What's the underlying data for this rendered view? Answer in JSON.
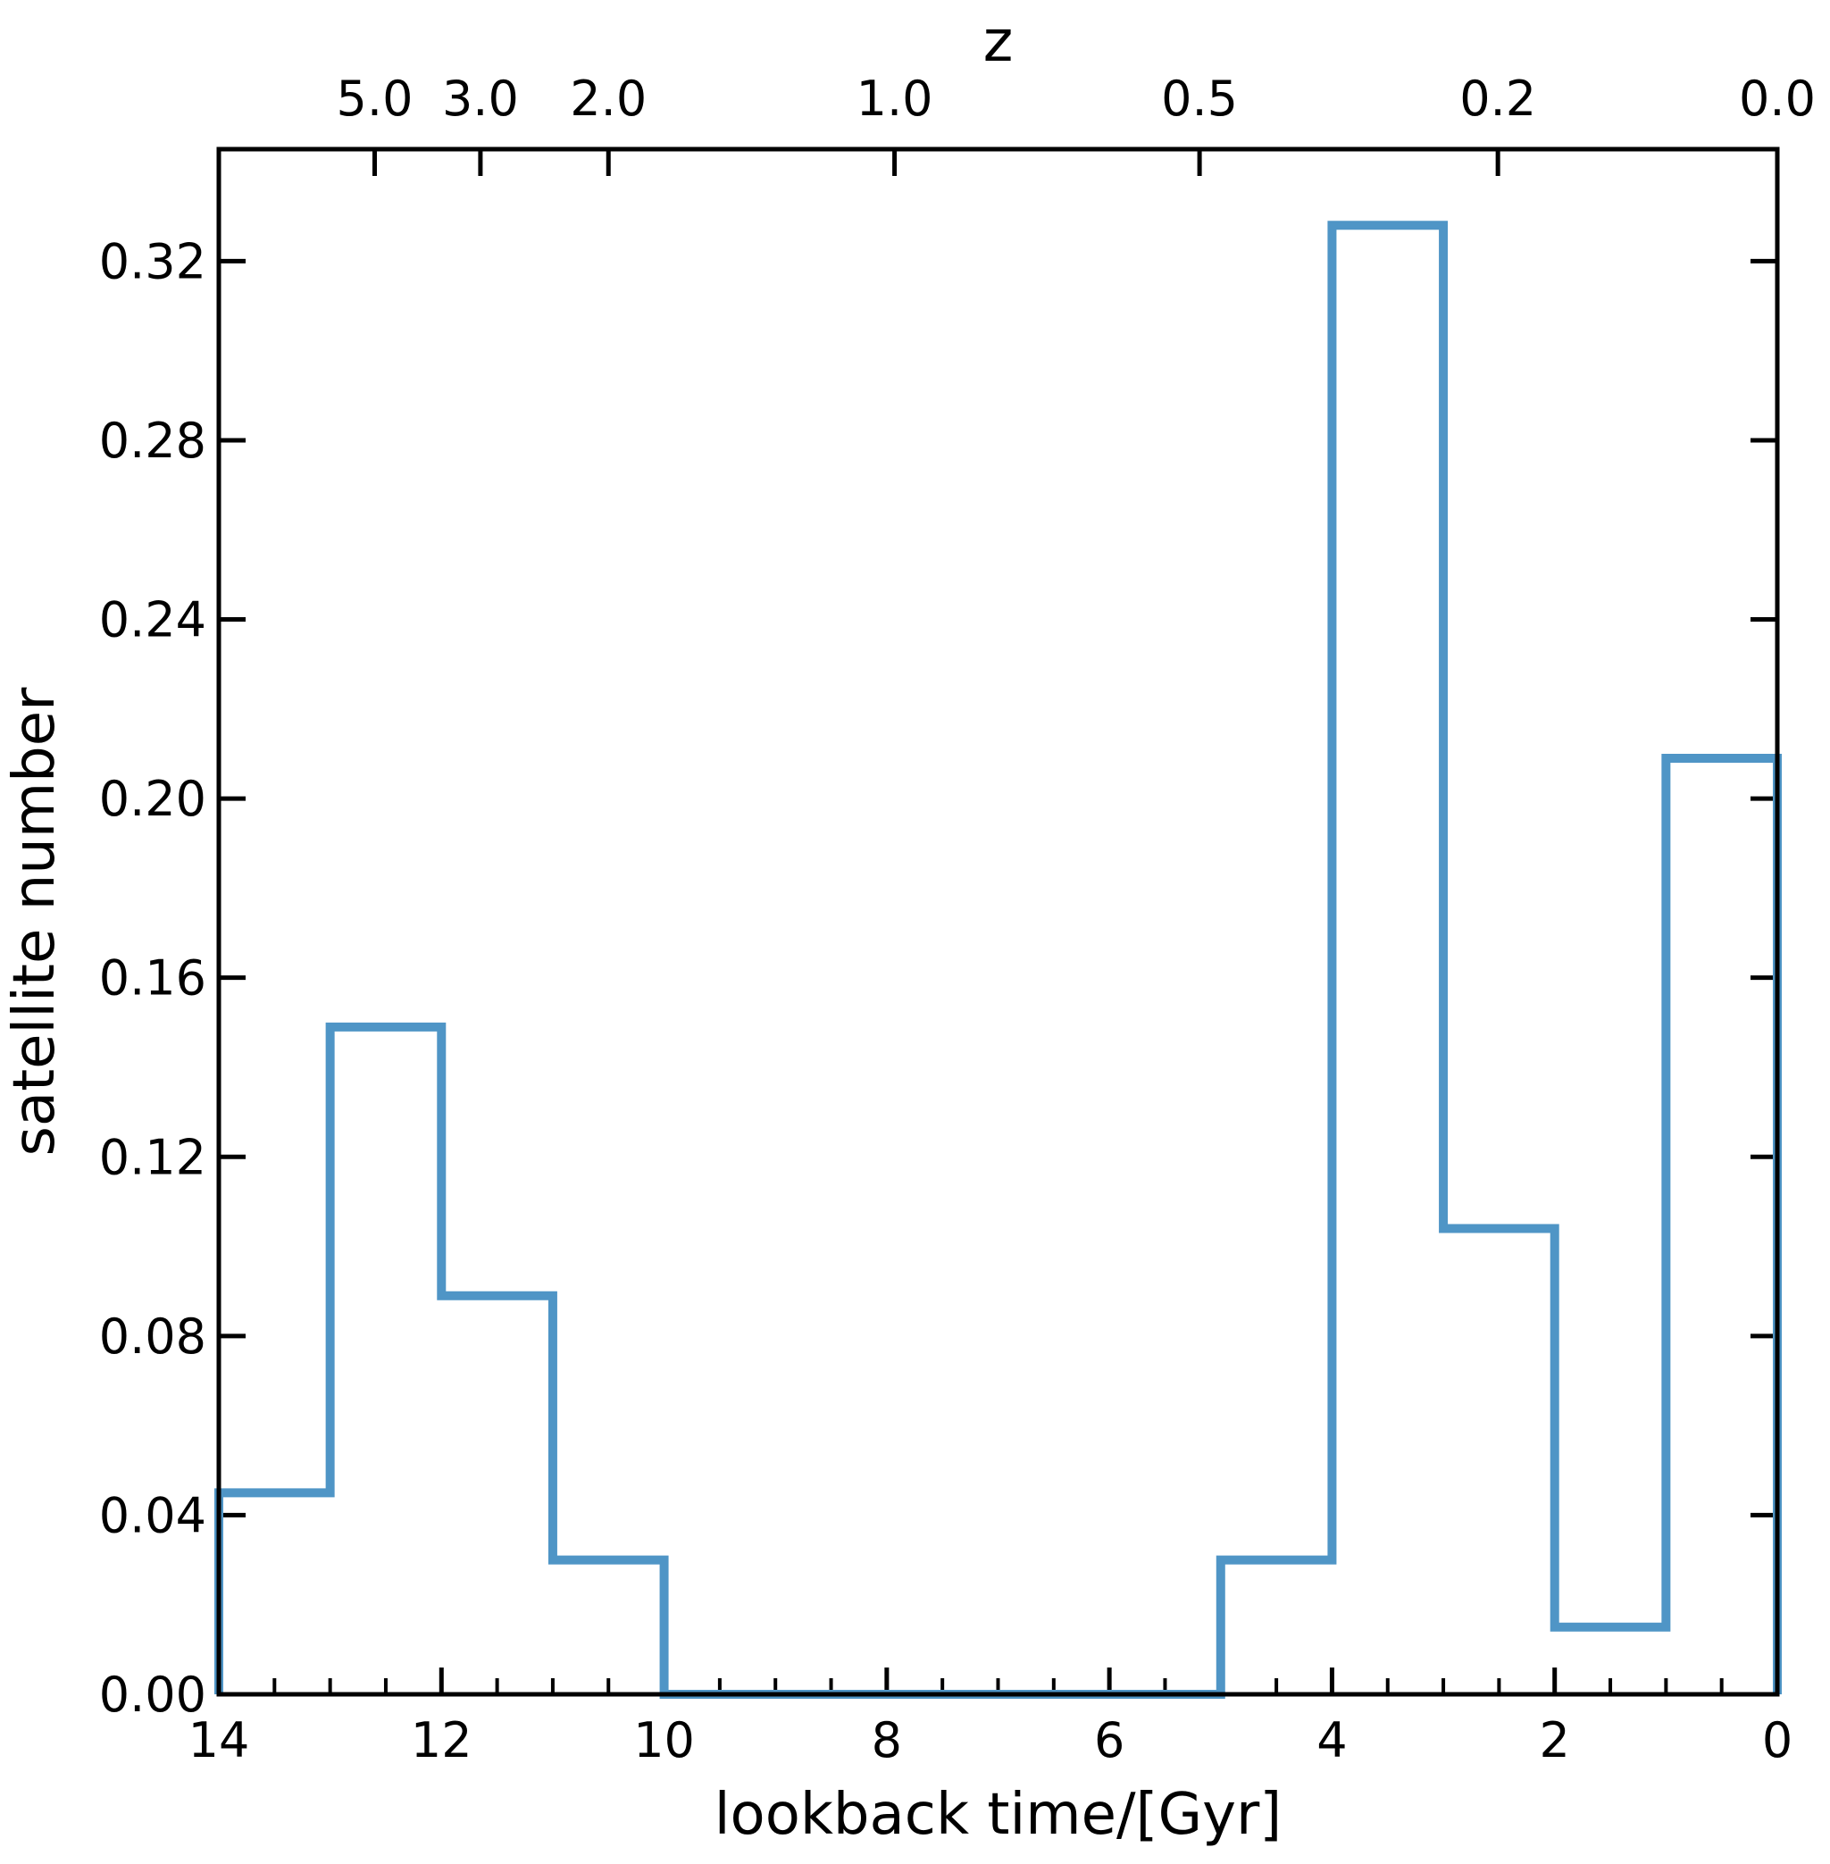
{
  "chart_data": {
    "type": "histogram-step",
    "xlabel": "lookback time/[Gyr]",
    "ylabel": "satellite number",
    "top_axis_label": "z",
    "xlim": [
      14,
      0
    ],
    "ylim": [
      0,
      0.345
    ],
    "x_reversed": true,
    "x_ticks_major": [
      14,
      12,
      10,
      8,
      6,
      4,
      2,
      0
    ],
    "x_tick_labels": [
      "14",
      "12",
      "10",
      "8",
      "6",
      "4",
      "2",
      "0"
    ],
    "x_ticks_minor": [
      13.5,
      13,
      12.5,
      11.5,
      11,
      10.5,
      9.5,
      9,
      8.5,
      7.5,
      7,
      6.5,
      5.5,
      5,
      4.5,
      3.5,
      3,
      2.5,
      1.5,
      1,
      0.5
    ],
    "y_ticks": [
      0.0,
      0.04,
      0.08,
      0.12,
      0.16,
      0.2,
      0.24,
      0.28,
      0.32
    ],
    "y_tick_labels": [
      "0.00",
      "0.04",
      "0.08",
      "0.12",
      "0.16",
      "0.20",
      "0.24",
      "0.28",
      "0.32"
    ],
    "top_axis_ticks": [
      {
        "z_label": "5.0",
        "lookback": 12.6
      },
      {
        "z_label": "3.0",
        "lookback": 11.65
      },
      {
        "z_label": "2.0",
        "lookback": 10.5
      },
      {
        "z_label": "1.0",
        "lookback": 7.93
      },
      {
        "z_label": "0.5",
        "lookback": 5.19
      },
      {
        "z_label": "0.2",
        "lookback": 2.51
      },
      {
        "z_label": "0.0",
        "lookback": 0.0
      }
    ],
    "bin_edges": [
      14,
      13,
      12,
      11,
      10,
      9,
      8,
      7,
      6,
      5,
      4,
      3,
      2,
      1,
      0
    ],
    "bin_values": [
      0.045,
      0.149,
      0.089,
      0.03,
      0.0,
      0.0,
      0.0,
      0.0,
      0.0,
      0.03,
      0.328,
      0.104,
      0.015,
      0.209
    ],
    "series_color": "#4f95c6",
    "grid": false,
    "legend": "none"
  }
}
